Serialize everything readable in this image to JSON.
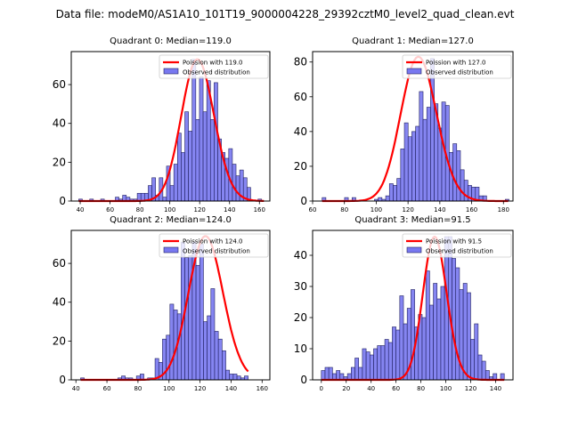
{
  "figure": {
    "suptitle": "Data file: modeM0/AS1A10_101T19_9000004228_29392cztM0_level2_quad_clean.evt"
  },
  "colors": {
    "bar_fill": "#7878f0",
    "bar_edge": "#202060",
    "poisson_line": "#ff0000",
    "axes": "#000000"
  },
  "chart_data": [
    {
      "type": "bar",
      "title": "Quadrant 0: Median=119.0",
      "legend": [
        "Poission with 119.0",
        "Observed distribution"
      ],
      "legend_placement": "top-right",
      "xlabel": "",
      "ylabel": "",
      "xlim": [
        34,
        167
      ],
      "ylim": [
        0,
        77
      ],
      "xticks": [
        40,
        60,
        80,
        100,
        120,
        140,
        160
      ],
      "yticks": [
        0,
        20,
        40,
        60
      ],
      "bin_start": 39,
      "bin_width": 2.45,
      "values": [
        1,
        0,
        0,
        1,
        0,
        0,
        1,
        0,
        0,
        0,
        2,
        1,
        3,
        2,
        1,
        1,
        4,
        4,
        4,
        8,
        12,
        3,
        12,
        2,
        18,
        8,
        19,
        35,
        25,
        46,
        36,
        73,
        42,
        64,
        46,
        62,
        42,
        61,
        32,
        25,
        22,
        27,
        19,
        13,
        16,
        12,
        7,
        0,
        0,
        1,
        0
      ],
      "poisson_mean": 119.0,
      "poisson_peak": 73
    },
    {
      "type": "bar",
      "title": "Quadrant 1: Median=127.0",
      "legend": [
        "Poission with 127.0",
        "Observed distribution"
      ],
      "legend_placement": "top-right",
      "xlabel": "",
      "ylabel": "",
      "xlim": [
        60,
        186
      ],
      "ylim": [
        0,
        86
      ],
      "xticks": [
        60,
        80,
        100,
        120,
        140,
        160,
        180
      ],
      "yticks": [
        0,
        20,
        40,
        60,
        80
      ],
      "bin_start": 66,
      "bin_width": 2.35,
      "values": [
        2,
        0,
        0,
        0,
        0,
        0,
        2,
        0,
        2,
        0,
        0,
        0,
        0,
        0,
        1,
        2,
        1,
        3,
        10,
        9,
        13,
        30,
        45,
        37,
        40,
        43,
        63,
        47,
        54,
        82,
        56,
        42,
        57,
        55,
        28,
        33,
        29,
        18,
        12,
        9,
        8,
        8,
        3,
        3,
        0,
        0,
        0,
        0,
        0,
        1
      ],
      "poisson_mean": 127.0,
      "poisson_peak": 83
    },
    {
      "type": "bar",
      "title": "Quadrant 2: Median=124.0",
      "legend": [
        "Poission with 124.0",
        "Observed distribution"
      ],
      "legend_placement": "top-right",
      "xlabel": "",
      "ylabel": "",
      "xlim": [
        37,
        165
      ],
      "ylim": [
        0,
        77
      ],
      "xticks": [
        40,
        60,
        80,
        100,
        120,
        140,
        160
      ],
      "yticks": [
        0,
        20,
        40,
        60
      ],
      "bin_start": 43,
      "bin_width": 2.4,
      "values": [
        1,
        0,
        0,
        0,
        0,
        0,
        0,
        0,
        0,
        0,
        1,
        2,
        1,
        1,
        0,
        2,
        3,
        0,
        1,
        1,
        11,
        9,
        21,
        23,
        39,
        36,
        34,
        71,
        63,
        64,
        71,
        59,
        70,
        30,
        33,
        47,
        25,
        21,
        15,
        5,
        3,
        3,
        2,
        1,
        2
      ],
      "poisson_mean": 124.0,
      "poisson_peak": 74
    },
    {
      "type": "bar",
      "title": "Quadrant 3: Median=91.5",
      "legend": [
        "Poission with 91.5",
        "Observed distribution"
      ],
      "legend_placement": "top-right",
      "xlabel": "",
      "ylabel": "",
      "xlim": [
        -7,
        154
      ],
      "ylim": [
        0,
        48
      ],
      "xticks": [
        0,
        20,
        40,
        60,
        80,
        100,
        120,
        140
      ],
      "yticks": [
        0,
        10,
        20,
        30,
        40
      ],
      "bin_start": 0,
      "bin_width": 3.0,
      "values": [
        3,
        4,
        4,
        2,
        3,
        2,
        1,
        2,
        4,
        7,
        4,
        10,
        9,
        8,
        10,
        11,
        11,
        13,
        12,
        17,
        16,
        27,
        18,
        23,
        29,
        17,
        21,
        20,
        35,
        24,
        31,
        26,
        30,
        46,
        46,
        39,
        36,
        29,
        31,
        28,
        13,
        18,
        8,
        6,
        3,
        1,
        2,
        0,
        2
      ],
      "poisson_mean": 91.5,
      "poisson_peak": 46
    }
  ]
}
